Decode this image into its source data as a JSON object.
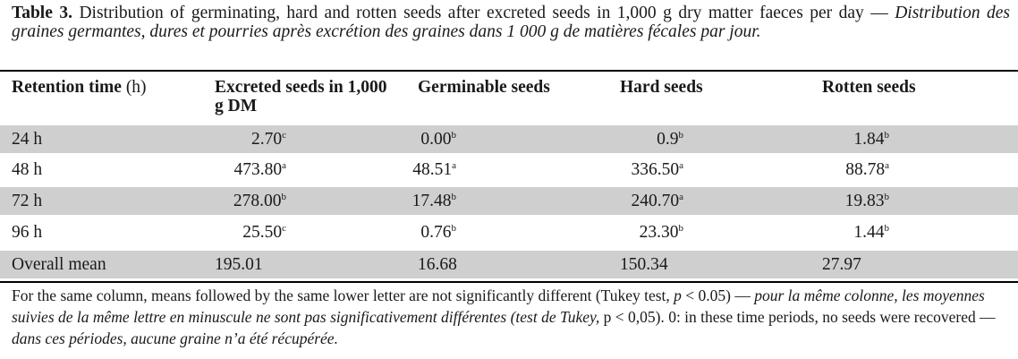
{
  "caption": {
    "label": "Table 3.",
    "text_en": "Distribution of germinating, hard and rotten seeds after excreted seeds in 1,000 g dry matter faeces per day",
    "separator": "—",
    "text_fr": "Distribution des graines germantes, dures et pourries après excrétion des graines dans 1 000 g de matières fécales par jour."
  },
  "columns": [
    {
      "label": "Retention time",
      "unit": "(h)"
    },
    {
      "label": "Excreted seeds in 1,000 g DM",
      "unit": ""
    },
    {
      "label": "Germinable seeds",
      "unit": ""
    },
    {
      "label": "Hard seeds",
      "unit": ""
    },
    {
      "label": "Rotten seeds",
      "unit": ""
    }
  ],
  "rows": [
    {
      "label": "24 h",
      "shaded": true,
      "cells": [
        {
          "v": "2.70",
          "s": "c"
        },
        {
          "v": "0.00",
          "s": "b"
        },
        {
          "v": "0.9",
          "s": "b"
        },
        {
          "v": "1.84",
          "s": "b"
        }
      ]
    },
    {
      "label": "48 h",
      "shaded": false,
      "cells": [
        {
          "v": "473.80",
          "s": "a"
        },
        {
          "v": "48.51",
          "s": "a"
        },
        {
          "v": "336.50",
          "s": "a"
        },
        {
          "v": "88.78",
          "s": "a"
        }
      ]
    },
    {
      "label": "72 h",
      "shaded": true,
      "cells": [
        {
          "v": "278.00",
          "s": "b"
        },
        {
          "v": "17.48",
          "s": "b"
        },
        {
          "v": "240.70",
          "s": "a"
        },
        {
          "v": "19.83",
          "s": "b"
        }
      ]
    },
    {
      "label": "96 h",
      "shaded": false,
      "cells": [
        {
          "v": "25.50",
          "s": "c"
        },
        {
          "v": "0.76",
          "s": "b"
        },
        {
          "v": "23.30",
          "s": "b"
        },
        {
          "v": "1.44",
          "s": "b"
        }
      ]
    },
    {
      "label": "Overall mean",
      "shaded": true,
      "cells": [
        {
          "v": "195.01",
          "s": ""
        },
        {
          "v": "16.68",
          "s": ""
        },
        {
          "v": "150.34",
          "s": ""
        },
        {
          "v": "27.97",
          "s": ""
        }
      ]
    }
  ],
  "footnote": {
    "en1": "For the same column, means followed by the same lower letter are not significantly different (Tukey test,",
    "p_en": "p",
    "p_en_val": "< 0.05)",
    "dash": "—",
    "fr1": "pour la même colonne, les moyennes suivies de la même lettre en minuscule ne sont pas significativement différentes (test de Tukey,",
    "p_fr": "p < 0,05).",
    "en2": "0: in these time periods, no seeds were recovered",
    "fr2": "dans ces périodes, aucune graine n’a été récupérée."
  },
  "colors": {
    "row_shade": "#cfcfcf",
    "rule": "#000000"
  }
}
